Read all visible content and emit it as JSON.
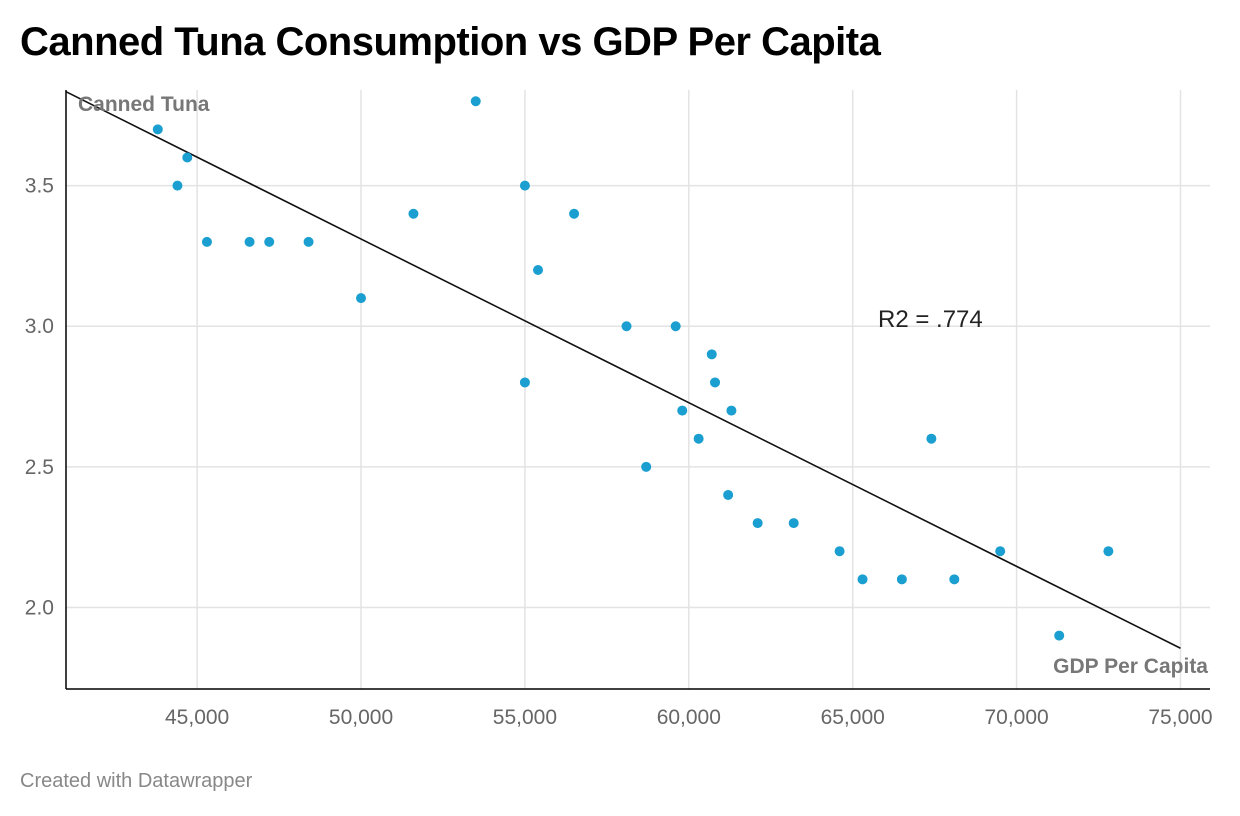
{
  "title": "Canned Tuna Consumption vs GDP Per Capita",
  "footer": "Created with Datawrapper",
  "chart_data": {
    "type": "scatter",
    "title": "Canned Tuna Consumption vs GDP Per Capita",
    "xlabel": "GDP Per Capita",
    "ylabel": "Canned Tuna",
    "xlim": [
      41000,
      75900
    ],
    "ylim": [
      1.71,
      3.84
    ],
    "x_ticks": [
      45000,
      50000,
      55000,
      60000,
      65000,
      70000,
      75000
    ],
    "x_tick_labels": [
      "45,000",
      "50,000",
      "55,000",
      "60,000",
      "65,000",
      "70,000",
      "75,000"
    ],
    "y_ticks": [
      2.0,
      2.5,
      3.0,
      3.5
    ],
    "y_tick_labels": [
      "2.0",
      "2.5",
      "3.0",
      "3.5"
    ],
    "grid": true,
    "point_color": "#1a9fd0",
    "points": [
      {
        "x": 43800,
        "y": 3.7
      },
      {
        "x": 44700,
        "y": 3.6
      },
      {
        "x": 44400,
        "y": 3.5
      },
      {
        "x": 45300,
        "y": 3.3
      },
      {
        "x": 46600,
        "y": 3.3
      },
      {
        "x": 47200,
        "y": 3.3
      },
      {
        "x": 48400,
        "y": 3.3
      },
      {
        "x": 50000,
        "y": 3.1
      },
      {
        "x": 51600,
        "y": 3.4
      },
      {
        "x": 53500,
        "y": 3.8
      },
      {
        "x": 55000,
        "y": 3.5
      },
      {
        "x": 55000,
        "y": 2.8
      },
      {
        "x": 55400,
        "y": 3.2
      },
      {
        "x": 56500,
        "y": 3.4
      },
      {
        "x": 58100,
        "y": 3.0
      },
      {
        "x": 58700,
        "y": 2.5
      },
      {
        "x": 59600,
        "y": 3.0
      },
      {
        "x": 59800,
        "y": 2.7
      },
      {
        "x": 60300,
        "y": 2.6
      },
      {
        "x": 60700,
        "y": 2.9
      },
      {
        "x": 60800,
        "y": 2.8
      },
      {
        "x": 61200,
        "y": 2.4
      },
      {
        "x": 61300,
        "y": 2.7
      },
      {
        "x": 62100,
        "y": 2.3
      },
      {
        "x": 63200,
        "y": 2.3
      },
      {
        "x": 64600,
        "y": 2.2
      },
      {
        "x": 65300,
        "y": 2.1
      },
      {
        "x": 66500,
        "y": 2.1
      },
      {
        "x": 67400,
        "y": 2.6
      },
      {
        "x": 68100,
        "y": 2.1
      },
      {
        "x": 69500,
        "y": 2.2
      },
      {
        "x": 71300,
        "y": 1.9
      },
      {
        "x": 72800,
        "y": 2.2
      }
    ],
    "trendline": {
      "x1": 41000,
      "y1": 3.834,
      "x2": 75000,
      "y2": 1.855
    },
    "annotation": "R2 = .774"
  }
}
